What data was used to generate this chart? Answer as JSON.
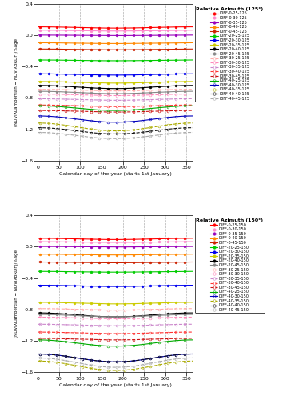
{
  "ylabel": "(NDVIλLambertian − NDVIλBRDF)/%age",
  "xlabel": "Calendar day of the year (starts 1st January)",
  "ylim": [
    -1.6,
    0.4
  ],
  "xlim": [
    0,
    365
  ],
  "yticks": [
    -1.6,
    -1.2,
    -0.8,
    -0.4,
    0.0,
    0.4
  ],
  "xticks": [
    0,
    50,
    100,
    150,
    200,
    250,
    300,
    350
  ],
  "vlines": [
    50,
    100,
    150,
    200,
    250,
    300,
    350
  ],
  "azimuths": [
    125,
    150
  ],
  "series": [
    {
      "ts": 0,
      "tv": 25,
      "color": "#ff0000",
      "ls": "solid",
      "filled": true,
      "base": [
        0.1,
        0.1
      ],
      "amp": [
        0.008,
        0.008
      ]
    },
    {
      "ts": 0,
      "tv": 30,
      "color": "#ff88cc",
      "ls": "solid",
      "filled": true,
      "base": [
        0.06,
        0.06
      ],
      "amp": [
        0.005,
        0.005
      ]
    },
    {
      "ts": 0,
      "tv": 35,
      "color": "#9900bb",
      "ls": "solid",
      "filled": true,
      "base": [
        0.0,
        0.0
      ],
      "amp": [
        0.003,
        0.003
      ]
    },
    {
      "ts": 0,
      "tv": 40,
      "color": "#ff8800",
      "ls": "solid",
      "filled": true,
      "base": [
        -0.1,
        -0.1
      ],
      "amp": [
        0.005,
        0.005
      ]
    },
    {
      "ts": 0,
      "tv": 45,
      "color": "#cc2200",
      "ls": "solid",
      "filled": true,
      "base": [
        -0.18,
        -0.2
      ],
      "amp": [
        0.005,
        0.005
      ]
    },
    {
      "ts": 20,
      "tv": 25,
      "color": "#00cc00",
      "ls": "solid",
      "filled": true,
      "base": [
        -0.32,
        -0.32
      ],
      "amp": [
        0.005,
        0.005
      ]
    },
    {
      "ts": 20,
      "tv": 30,
      "color": "#0000ee",
      "ls": "solid",
      "filled": true,
      "base": [
        -0.5,
        -0.5
      ],
      "amp": [
        0.008,
        0.008
      ]
    },
    {
      "ts": 20,
      "tv": 35,
      "color": "#cccc00",
      "ls": "solid",
      "filled": true,
      "base": [
        -0.6,
        -0.72
      ],
      "amp": [
        0.01,
        0.01
      ]
    },
    {
      "ts": 20,
      "tv": 40,
      "color": "#000000",
      "ls": "solid",
      "filled": true,
      "base": [
        -0.66,
        -0.87
      ],
      "amp": [
        0.02,
        0.025
      ]
    },
    {
      "ts": 20,
      "tv": 45,
      "color": "#888888",
      "ls": "solid",
      "filled": true,
      "base": [
        -0.73,
        -0.88
      ],
      "amp": [
        0.015,
        0.015
      ]
    },
    {
      "ts": 30,
      "tv": 25,
      "color": "#ffaaaa",
      "ls": "dashed",
      "filled": false,
      "base": [
        -0.7,
        -0.8
      ],
      "amp": [
        0.01,
        0.01
      ]
    },
    {
      "ts": 30,
      "tv": 30,
      "color": "#ff88bb",
      "ls": "dashed",
      "filled": false,
      "base": [
        -0.76,
        -0.91
      ],
      "amp": [
        0.01,
        0.01
      ]
    },
    {
      "ts": 30,
      "tv": 35,
      "color": "#cc88cc",
      "ls": "dashed",
      "filled": false,
      "base": [
        -0.82,
        -1.0
      ],
      "amp": [
        0.01,
        0.01
      ]
    },
    {
      "ts": 30,
      "tv": 40,
      "color": "#ff3333",
      "ls": "dashed",
      "filled": false,
      "base": [
        -0.9,
        -1.1
      ],
      "amp": [
        0.01,
        0.01
      ]
    },
    {
      "ts": 30,
      "tv": 45,
      "color": "#cc1111",
      "ls": "dashed",
      "filled": false,
      "base": [
        -0.97,
        -1.18
      ],
      "amp": [
        0.01,
        0.01
      ]
    },
    {
      "ts": 40,
      "tv": 25,
      "color": "#00aa00",
      "ls": "solid",
      "filled": false,
      "base": [
        -0.93,
        -1.23
      ],
      "amp": [
        0.03,
        0.04
      ]
    },
    {
      "ts": 40,
      "tv": 30,
      "color": "#0000bb",
      "ls": "solid",
      "filled": false,
      "base": [
        -1.07,
        -1.42
      ],
      "amp": [
        0.04,
        0.05
      ]
    },
    {
      "ts": 40,
      "tv": 35,
      "color": "#aaaa00",
      "ls": "dashed",
      "filled": false,
      "base": [
        -1.17,
        -1.52
      ],
      "amp": [
        0.05,
        0.06
      ]
    },
    {
      "ts": 40,
      "tv": 40,
      "color": "#111111",
      "ls": "dashed",
      "filled": false,
      "base": [
        -1.22,
        -1.42
      ],
      "amp": [
        0.04,
        0.05
      ]
    },
    {
      "ts": 40,
      "tv": 45,
      "color": "#aaaaaa",
      "ls": "dashed",
      "filled": false,
      "base": [
        -1.28,
        -1.48
      ],
      "amp": [
        0.04,
        0.06
      ]
    }
  ]
}
